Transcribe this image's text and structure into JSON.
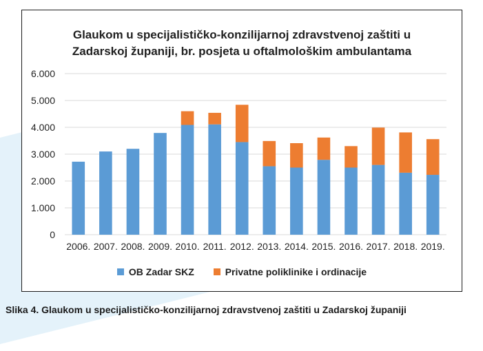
{
  "caption": "Slika 4. Glaukom u specijalističko-konzilijarnoj zdravstvenoj zaštiti u Zadarskoj županiji",
  "colors": {
    "series1": "#5b9bd5",
    "series2": "#ed7d31",
    "grid": "#d9d9d9",
    "background_shape": "#e4f2fa"
  },
  "chart_data": {
    "type": "bar",
    "stacked": true,
    "title_line1": "Glaukom u specijalističko-konzilijarnoj  zdravstvenoj zaštiti u",
    "title_line2": "Zadarskoj županiji, br. posjeta u oftalmološkim ambulantama",
    "categories": [
      "2006.",
      "2007.",
      "2008.",
      "2009.",
      "2010.",
      "2011.",
      "2012.",
      "2013.",
      "2014.",
      "2015.",
      "2016.",
      "2017.",
      "2018.",
      "2019."
    ],
    "series": [
      {
        "name": "OB Zadar SKZ",
        "values": [
          2720,
          3100,
          3200,
          3790,
          4090,
          4110,
          3450,
          2550,
          2500,
          2790,
          2500,
          2600,
          2310,
          2230
        ]
      },
      {
        "name": "Privatne poliklinike i ordinacije",
        "values": [
          0,
          0,
          0,
          0,
          510,
          430,
          1390,
          940,
          910,
          830,
          800,
          1390,
          1500,
          1330
        ]
      }
    ],
    "yticks": [
      "0",
      "1.000",
      "2.000",
      "3.000",
      "4.000",
      "5.000",
      "6.000"
    ],
    "ylim": [
      0,
      6000
    ],
    "grid": true,
    "legend_position": "bottom"
  }
}
